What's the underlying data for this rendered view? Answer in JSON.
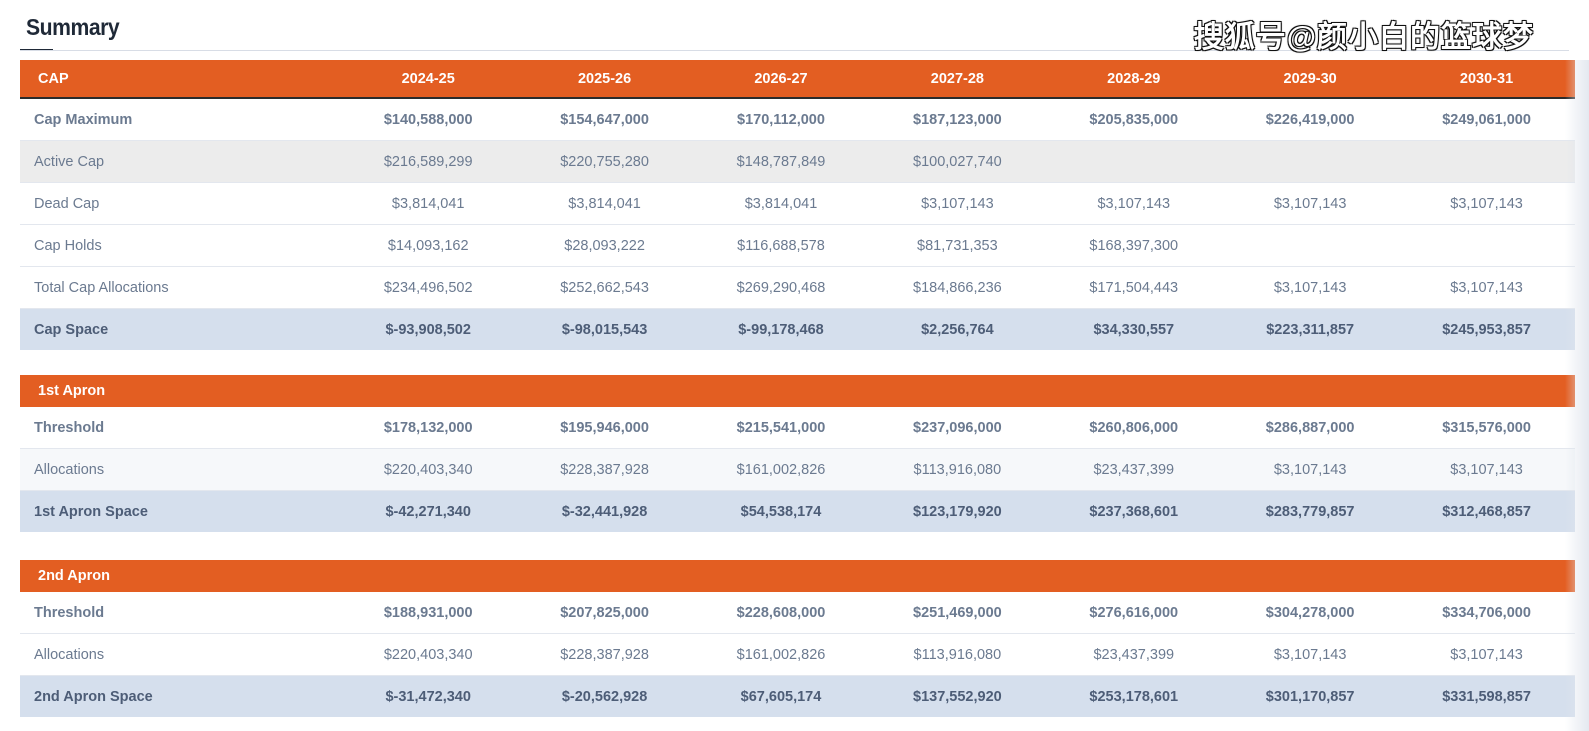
{
  "page": {
    "title": "Summary",
    "watermark": "搜狐号@颜小白的篮球梦"
  },
  "years": [
    "2024-25",
    "2025-26",
    "2026-27",
    "2027-28",
    "2028-29",
    "2029-30",
    "2030-31"
  ],
  "cap": {
    "header_label": "CAP",
    "rows": [
      {
        "label": "Cap Maximum",
        "values": [
          "$140,588,000",
          "$154,647,000",
          "$170,112,000",
          "$187,123,000",
          "$205,835,000",
          "$226,419,000",
          "$249,061,000"
        ]
      },
      {
        "label": "Active Cap",
        "values": [
          "$216,589,299",
          "$220,755,280",
          "$148,787,849",
          "$100,027,740",
          "",
          "",
          ""
        ]
      },
      {
        "label": "Dead Cap",
        "values": [
          "$3,814,041",
          "$3,814,041",
          "$3,814,041",
          "$3,107,143",
          "$3,107,143",
          "$3,107,143",
          "$3,107,143"
        ]
      },
      {
        "label": "Cap Holds",
        "values": [
          "$14,093,162",
          "$28,093,222",
          "$116,688,578",
          "$81,731,353",
          "$168,397,300",
          "",
          ""
        ]
      },
      {
        "label": "Total Cap Allocations",
        "values": [
          "$234,496,502",
          "$252,662,543",
          "$269,290,468",
          "$184,866,236",
          "$171,504,443",
          "$3,107,143",
          "$3,107,143"
        ]
      },
      {
        "label": "Cap Space",
        "values": [
          "$-93,908,502",
          "$-98,015,543",
          "$-99,178,468",
          "$2,256,764",
          "$34,330,557",
          "$223,311,857",
          "$245,953,857"
        ]
      }
    ]
  },
  "apron1": {
    "header_label": "1st Apron",
    "rows": [
      {
        "label": "Threshold",
        "values": [
          "$178,132,000",
          "$195,946,000",
          "$215,541,000",
          "$237,096,000",
          "$260,806,000",
          "$286,887,000",
          "$315,576,000"
        ]
      },
      {
        "label": "Allocations",
        "values": [
          "$220,403,340",
          "$228,387,928",
          "$161,002,826",
          "$113,916,080",
          "$23,437,399",
          "$3,107,143",
          "$3,107,143"
        ]
      },
      {
        "label": "1st Apron Space",
        "values": [
          "$-42,271,340",
          "$-32,441,928",
          "$54,538,174",
          "$123,179,920",
          "$237,368,601",
          "$283,779,857",
          "$312,468,857"
        ]
      }
    ]
  },
  "apron2": {
    "header_label": "2nd Apron",
    "rows": [
      {
        "label": "Threshold",
        "values": [
          "$188,931,000",
          "$207,825,000",
          "$228,608,000",
          "$251,469,000",
          "$276,616,000",
          "$304,278,000",
          "$334,706,000"
        ]
      },
      {
        "label": "Allocations",
        "values": [
          "$220,403,340",
          "$228,387,928",
          "$161,002,826",
          "$113,916,080",
          "$23,437,399",
          "$3,107,143",
          "$3,107,143"
        ]
      },
      {
        "label": "2nd Apron Space",
        "values": [
          "$-31,472,340",
          "$-20,562,928",
          "$67,605,174",
          "$137,552,920",
          "$253,178,601",
          "$301,170,857",
          "$331,598,857"
        ]
      }
    ]
  }
}
